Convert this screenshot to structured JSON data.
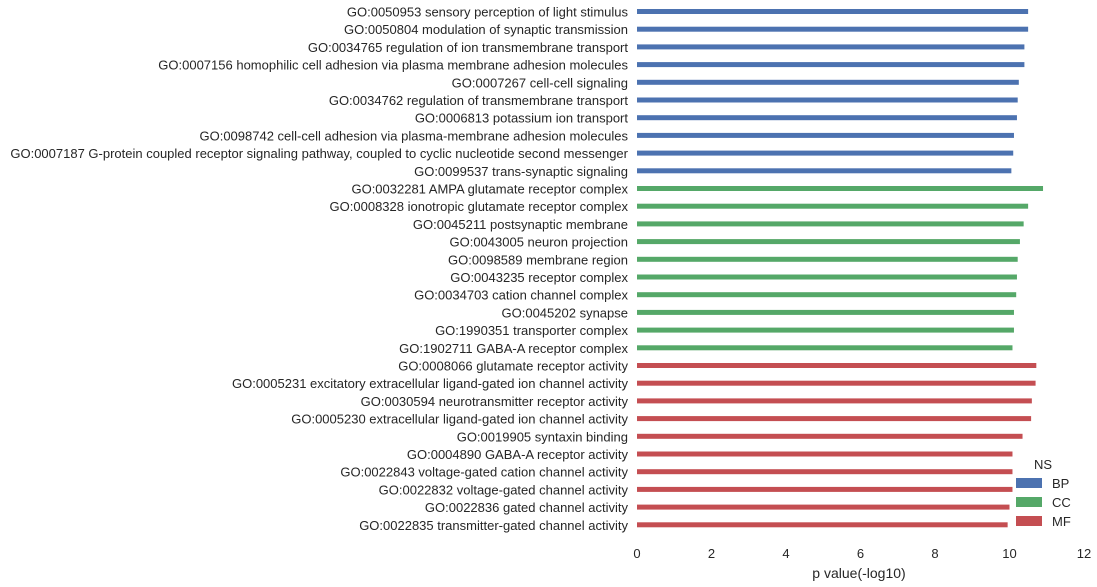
{
  "chart_data": {
    "type": "bar",
    "orientation": "horizontal",
    "xlabel": "p value(-log10)",
    "ylabel": "",
    "xlim": [
      0,
      12
    ],
    "xticks": [
      0,
      2,
      4,
      6,
      8,
      10,
      12
    ],
    "grid": false,
    "legend": {
      "title": "NS",
      "placement": "bottom-right",
      "entries": [
        {
          "name": "BP",
          "color": "#4c72b0"
        },
        {
          "name": "CC",
          "color": "#55a868"
        },
        {
          "name": "MF",
          "color": "#c44e52"
        }
      ]
    },
    "categories": [
      "GO:0050953 sensory perception of light stimulus",
      "GO:0050804 modulation of synaptic transmission",
      "GO:0034765 regulation of ion transmembrane transport",
      "GO:0007156 homophilic cell adhesion via plasma membrane adhesion molecules",
      "GO:0007267 cell-cell signaling",
      "GO:0034762 regulation of transmembrane transport",
      "GO:0006813 potassium ion transport",
      "GO:0098742 cell-cell adhesion via plasma-membrane adhesion molecules",
      "GO:0007187 G-protein coupled receptor signaling pathway, coupled to cyclic nucleotide second messenger",
      "GO:0099537 trans-synaptic signaling",
      "GO:0032281 AMPA glutamate receptor complex",
      "GO:0008328 ionotropic glutamate receptor complex",
      "GO:0045211 postsynaptic membrane",
      "GO:0043005 neuron projection",
      "GO:0098589 membrane region",
      "GO:0043235 receptor complex",
      "GO:0034703 cation channel complex",
      "GO:0045202 synapse",
      "GO:1990351 transporter complex",
      "GO:1902711 GABA-A receptor complex",
      "GO:0008066 glutamate receptor activity",
      "GO:0005231 excitatory extracellular ligand-gated ion channel activity",
      "GO:0030594 neurotransmitter receptor activity",
      "GO:0005230 extracellular ligand-gated ion channel activity",
      "GO:0019905 syntaxin binding",
      "GO:0004890 GABA-A receptor activity",
      "GO:0022843 voltage-gated cation channel activity",
      "GO:0022832 voltage-gated channel activity",
      "GO:0022836 gated channel activity",
      "GO:0022835 transmitter-gated channel activity"
    ],
    "series": [
      {
        "name": "BP",
        "values": [
          10.5,
          10.5,
          10.4,
          10.4,
          10.25,
          10.22,
          10.2,
          10.12,
          10.1,
          10.05,
          null,
          null,
          null,
          null,
          null,
          null,
          null,
          null,
          null,
          null,
          null,
          null,
          null,
          null,
          null,
          null,
          null,
          null,
          null,
          null
        ]
      },
      {
        "name": "CC",
        "values": [
          null,
          null,
          null,
          null,
          null,
          null,
          null,
          null,
          null,
          null,
          10.9,
          10.5,
          10.38,
          10.28,
          10.22,
          10.2,
          10.18,
          10.12,
          10.12,
          10.08,
          null,
          null,
          null,
          null,
          null,
          null,
          null,
          null,
          null,
          null
        ]
      },
      {
        "name": "MF",
        "values": [
          null,
          null,
          null,
          null,
          null,
          null,
          null,
          null,
          null,
          null,
          null,
          null,
          null,
          null,
          null,
          null,
          null,
          null,
          null,
          null,
          10.72,
          10.7,
          10.6,
          10.58,
          10.35,
          10.08,
          10.08,
          10.08,
          10.0,
          9.95
        ]
      }
    ]
  }
}
